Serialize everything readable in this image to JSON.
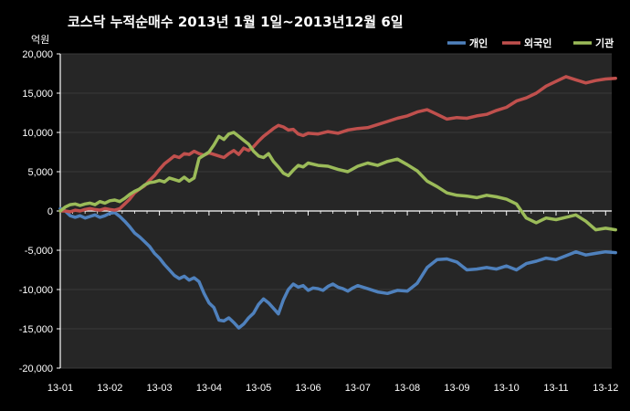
{
  "chart_data": {
    "type": "line",
    "title": "코스닥 누적순매수 2013년 1월 1일~2013년12월 6일",
    "ylabel": "억원",
    "xlabel": "",
    "ylim": [
      -20000,
      20000
    ],
    "yticks": [
      20000,
      15000,
      10000,
      5000,
      0,
      -5000,
      -10000,
      -15000,
      -20000
    ],
    "ytick_labels": [
      "20,000",
      "15,000",
      "10,000",
      "5,000",
      "0",
      "-5,000",
      "-10,000",
      "-15,000",
      "-20,000"
    ],
    "xlim": [
      0,
      11.2
    ],
    "xtick_labels": [
      "13-01",
      "13-02",
      "13-03",
      "13-04",
      "13-05",
      "13-06",
      "13-07",
      "13-08",
      "13-09",
      "13-10",
      "13-11",
      "13-12"
    ],
    "grid": true,
    "legend": "top-right",
    "series": [
      {
        "name": "개인",
        "color": "#4f81bd",
        "x": [
          0,
          0.1,
          0.2,
          0.3,
          0.4,
          0.5,
          0.6,
          0.7,
          0.8,
          0.9,
          1.0,
          1.1,
          1.2,
          1.3,
          1.4,
          1.5,
          1.6,
          1.7,
          1.8,
          1.9,
          2.0,
          2.1,
          2.2,
          2.3,
          2.4,
          2.5,
          2.6,
          2.7,
          2.8,
          2.9,
          3.0,
          3.1,
          3.2,
          3.3,
          3.4,
          3.5,
          3.6,
          3.7,
          3.8,
          3.9,
          4.0,
          4.1,
          4.2,
          4.3,
          4.4,
          4.5,
          4.6,
          4.7,
          4.8,
          4.9,
          5.0,
          5.1,
          5.2,
          5.3,
          5.4,
          5.5,
          5.6,
          5.7,
          5.8,
          5.9,
          6.0,
          6.2,
          6.4,
          6.6,
          6.8,
          7.0,
          7.2,
          7.4,
          7.6,
          7.8,
          8.0,
          8.2,
          8.4,
          8.6,
          8.8,
          9.0,
          9.2,
          9.4,
          9.6,
          9.8,
          10.0,
          10.2,
          10.4,
          10.6,
          10.8,
          11.0,
          11.2
        ],
        "values": [
          300,
          0,
          -600,
          -800,
          -600,
          -900,
          -700,
          -500,
          -800,
          -600,
          -300,
          -200,
          -700,
          -1300,
          -2000,
          -2800,
          -3300,
          -3900,
          -4500,
          -5400,
          -6000,
          -6800,
          -7500,
          -8200,
          -8600,
          -8300,
          -8800,
          -8500,
          -9000,
          -10500,
          -11700,
          -12300,
          -13900,
          -14000,
          -13600,
          -14200,
          -14900,
          -14400,
          -13600,
          -13000,
          -11900,
          -11200,
          -11700,
          -12400,
          -13100,
          -11300,
          -10000,
          -9300,
          -9700,
          -9500,
          -10100,
          -9800,
          -9900,
          -10100,
          -9600,
          -9300,
          -9700,
          -9900,
          -10200,
          -9800,
          -9500,
          -9900,
          -10300,
          -10500,
          -10100,
          -10200,
          -9200,
          -7200,
          -6200,
          -6100,
          -6500,
          -7500,
          -7400,
          -7200,
          -7400,
          -7000,
          -7500,
          -6700,
          -6400,
          -6000,
          -6200,
          -5700,
          -5200,
          -5600,
          -5400,
          -5200,
          -5300
        ]
      },
      {
        "name": "외국인",
        "color": "#c0504d",
        "x": [
          0,
          0.1,
          0.2,
          0.3,
          0.4,
          0.5,
          0.6,
          0.7,
          0.8,
          0.9,
          1.0,
          1.1,
          1.2,
          1.3,
          1.4,
          1.5,
          1.6,
          1.7,
          1.8,
          1.9,
          2.0,
          2.1,
          2.2,
          2.3,
          2.4,
          2.5,
          2.6,
          2.7,
          2.8,
          2.9,
          3.0,
          3.1,
          3.2,
          3.3,
          3.4,
          3.5,
          3.6,
          3.7,
          3.8,
          3.9,
          4.0,
          4.1,
          4.2,
          4.3,
          4.4,
          4.5,
          4.6,
          4.7,
          4.8,
          4.9,
          5.0,
          5.2,
          5.4,
          5.6,
          5.8,
          6.0,
          6.2,
          6.4,
          6.6,
          6.8,
          7.0,
          7.2,
          7.4,
          7.6,
          7.8,
          8.0,
          8.2,
          8.4,
          8.6,
          8.8,
          9.0,
          9.2,
          9.4,
          9.6,
          9.8,
          10.0,
          10.2,
          10.4,
          10.6,
          10.8,
          11.0,
          11.2
        ],
        "values": [
          0,
          0,
          -100,
          100,
          0,
          200,
          300,
          200,
          100,
          300,
          200,
          100,
          300,
          900,
          1500,
          2300,
          2800,
          3200,
          3900,
          4500,
          5300,
          6000,
          6500,
          7000,
          6800,
          7300,
          7200,
          7600,
          7300,
          7100,
          7400,
          7200,
          7000,
          6800,
          7300,
          7700,
          7200,
          8000,
          7700,
          8200,
          8900,
          9500,
          10000,
          10500,
          10900,
          10700,
          10300,
          10400,
          9800,
          9600,
          9900,
          9800,
          10100,
          9900,
          10300,
          10500,
          10600,
          11000,
          11400,
          11800,
          12100,
          12600,
          12900,
          12300,
          11700,
          11900,
          11800,
          12100,
          12300,
          12800,
          13200,
          14000,
          14400,
          15000,
          15900,
          16500,
          17100,
          16700,
          16300,
          16600,
          16800,
          16900
        ]
      },
      {
        "name": "기관",
        "color": "#9bbb59",
        "x": [
          0,
          0.1,
          0.2,
          0.3,
          0.4,
          0.5,
          0.6,
          0.7,
          0.8,
          0.9,
          1.0,
          1.1,
          1.2,
          1.3,
          1.4,
          1.5,
          1.6,
          1.7,
          1.8,
          1.9,
          2.0,
          2.1,
          2.2,
          2.3,
          2.4,
          2.5,
          2.6,
          2.7,
          2.8,
          2.9,
          3.0,
          3.1,
          3.2,
          3.3,
          3.4,
          3.5,
          3.6,
          3.7,
          3.8,
          3.9,
          4.0,
          4.1,
          4.2,
          4.3,
          4.4,
          4.5,
          4.6,
          4.7,
          4.8,
          4.9,
          5.0,
          5.2,
          5.4,
          5.6,
          5.8,
          6.0,
          6.2,
          6.4,
          6.6,
          6.8,
          7.0,
          7.2,
          7.4,
          7.6,
          7.8,
          8.0,
          8.2,
          8.4,
          8.6,
          8.8,
          9.0,
          9.2,
          9.4,
          9.6,
          9.8,
          10.0,
          10.2,
          10.4,
          10.6,
          10.8,
          11.0,
          11.2
        ],
        "values": [
          0,
          500,
          800,
          900,
          700,
          900,
          1000,
          800,
          1200,
          1000,
          1300,
          1400,
          1200,
          1600,
          2100,
          2500,
          2800,
          3300,
          3600,
          3700,
          3900,
          3700,
          4200,
          4000,
          3800,
          4300,
          3800,
          4200,
          6700,
          7100,
          7500,
          8400,
          9500,
          9100,
          9800,
          10000,
          9500,
          9000,
          8500,
          7600,
          7000,
          6800,
          7300,
          6300,
          5600,
          4800,
          4500,
          5200,
          5800,
          5600,
          6100,
          5800,
          5700,
          5300,
          5000,
          5700,
          6100,
          5800,
          6300,
          6600,
          5900,
          5100,
          3800,
          3100,
          2300,
          2000,
          1900,
          1700,
          2000,
          1800,
          1500,
          900,
          -900,
          -1500,
          -900,
          -1100,
          -800,
          -500,
          -1300,
          -2400,
          -2200,
          -2400
        ]
      }
    ]
  }
}
